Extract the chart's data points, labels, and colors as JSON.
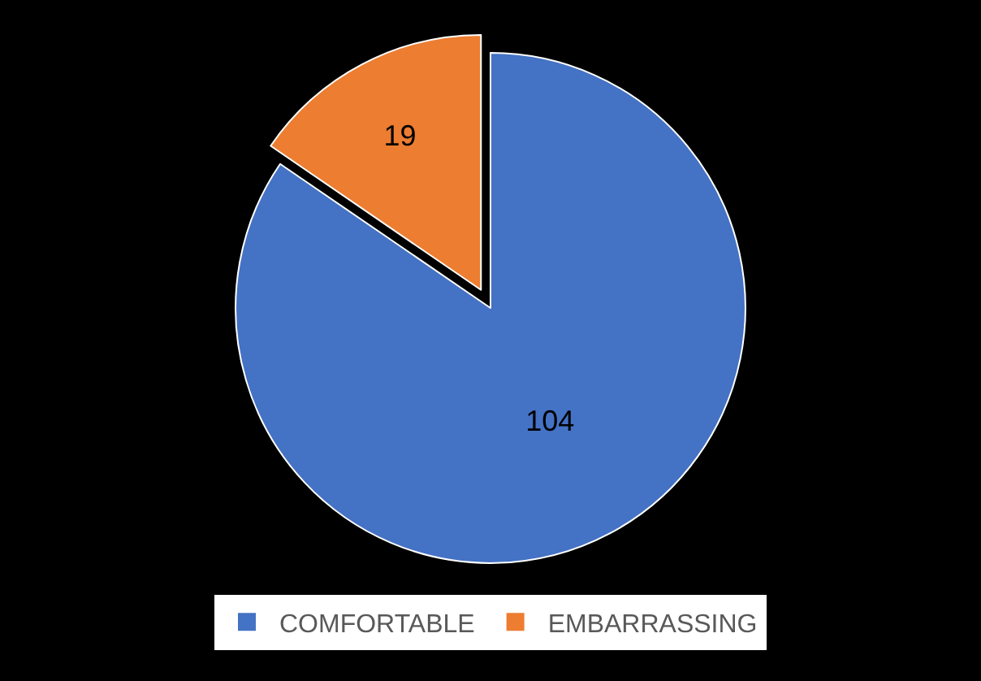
{
  "chart_data": {
    "type": "pie",
    "categories": [
      "COMFORTABLE",
      "EMBARRASSING"
    ],
    "values": [
      104,
      19
    ],
    "colors": [
      "#4472c4",
      "#ed7d31"
    ],
    "data_labels": true,
    "legend": "bottom"
  }
}
